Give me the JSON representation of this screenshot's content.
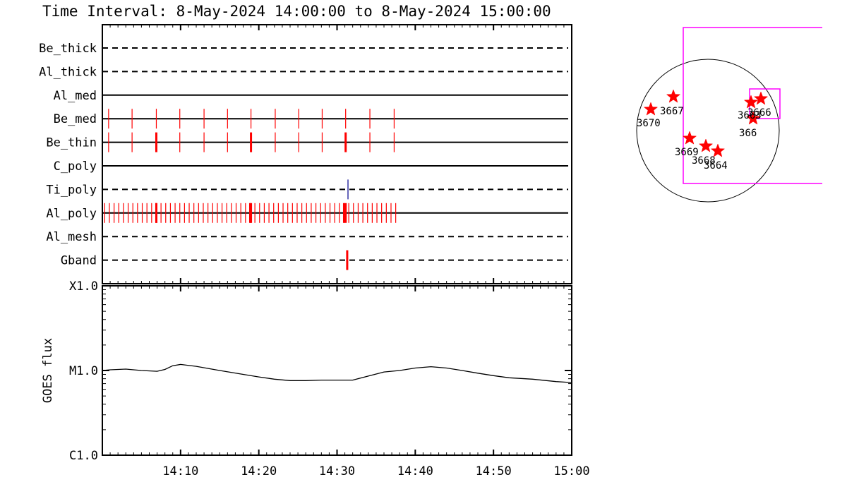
{
  "title": "Time Interval:  8-May-2024 14:00:00 to  8-May-2024 15:00:00",
  "colors": {
    "event": "#ff0000",
    "bar_alt": "#00008b",
    "fov": "#ff00ff",
    "star": "#ff0000"
  },
  "chart_data": [
    {
      "type": "timeline",
      "time_range": [
        "14:00",
        "15:00"
      ],
      "rows": [
        {
          "name": "Be_thick",
          "style": "dashed",
          "events": []
        },
        {
          "name": "Al_thick",
          "style": "dashed",
          "events": []
        },
        {
          "name": "Al_med",
          "style": "solid",
          "events": []
        },
        {
          "name": "Be_med",
          "style": "solid",
          "events": [
            0.8,
            3.8,
            6.9,
            9.9,
            13.0,
            16.0,
            19.0,
            22.1,
            25.1,
            28.1,
            31.1,
            34.2,
            37.3
          ]
        },
        {
          "name": "Be_thin",
          "style": "solid",
          "events": [
            0.8,
            3.8,
            6.9,
            9.9,
            13.0,
            16.0,
            19.0,
            22.1,
            25.1,
            28.1,
            31.1,
            34.2,
            37.3
          ],
          "thick_events": [
            6.9,
            19.0,
            31.1
          ]
        },
        {
          "name": "C_poly",
          "style": "solid",
          "events": []
        },
        {
          "name": "Ti_poly",
          "style": "dashed",
          "events": [
            31.4
          ],
          "event_color": "bar_alt"
        },
        {
          "name": "Al_poly",
          "style": "solid",
          "event_range": [
            0.3,
            37.8
          ],
          "event_step": 0.6,
          "thick_events": [
            6.9,
            19.0,
            31.1
          ]
        },
        {
          "name": "Al_mesh",
          "style": "dashed",
          "events": []
        },
        {
          "name": "Gband",
          "style": "dashed",
          "events": [
            31.3
          ],
          "thick_events": [
            31.3
          ]
        }
      ]
    },
    {
      "type": "line",
      "ylabel": "GOES flux",
      "yscale": "log",
      "ylim": [
        1e-06,
        0.0001
      ],
      "yticks": [
        {
          "value": 0.0001,
          "label": "X1.0"
        },
        {
          "value": 1e-05,
          "label": "M1.0"
        },
        {
          "value": 1e-06,
          "label": "C1.0"
        }
      ],
      "xlim": [
        0,
        60
      ],
      "xticks": [
        {
          "value": 10,
          "label": "14:10"
        },
        {
          "value": 20,
          "label": "14:20"
        },
        {
          "value": 30,
          "label": "14:30"
        },
        {
          "value": 40,
          "label": "14:40"
        },
        {
          "value": 50,
          "label": "14:50"
        },
        {
          "value": 60,
          "label": "15:00"
        }
      ],
      "series": [
        {
          "x": [
            0,
            1,
            3,
            5,
            7,
            8,
            9,
            10,
            12,
            15,
            18,
            20,
            22,
            24,
            26,
            28,
            30,
            32,
            34,
            36,
            38,
            40,
            42,
            44,
            46,
            48,
            50,
            52,
            55,
            58,
            60
          ],
          "y": [
            1e-05,
            1.02e-05,
            1.04e-05,
            1e-05,
            9.8e-06,
            1.03e-05,
            1.14e-05,
            1.18e-05,
            1.12e-05,
            1e-05,
            9e-06,
            8.4e-06,
            7.9e-06,
            7.6e-06,
            7.6e-06,
            7.7e-06,
            7.7e-06,
            7.7e-06,
            8.6e-06,
            9.6e-06,
            1e-05,
            1.07e-05,
            1.11e-05,
            1.07e-05,
            1e-05,
            9.3e-06,
            8.7e-06,
            8.2e-06,
            7.9e-06,
            7.4e-06,
            7.2e-06
          ]
        }
      ]
    },
    {
      "type": "scatter",
      "ar_labels": [
        "3670",
        "3667",
        "3669",
        "3668",
        "3664",
        "3663",
        "3666",
        "366"
      ]
    }
  ]
}
